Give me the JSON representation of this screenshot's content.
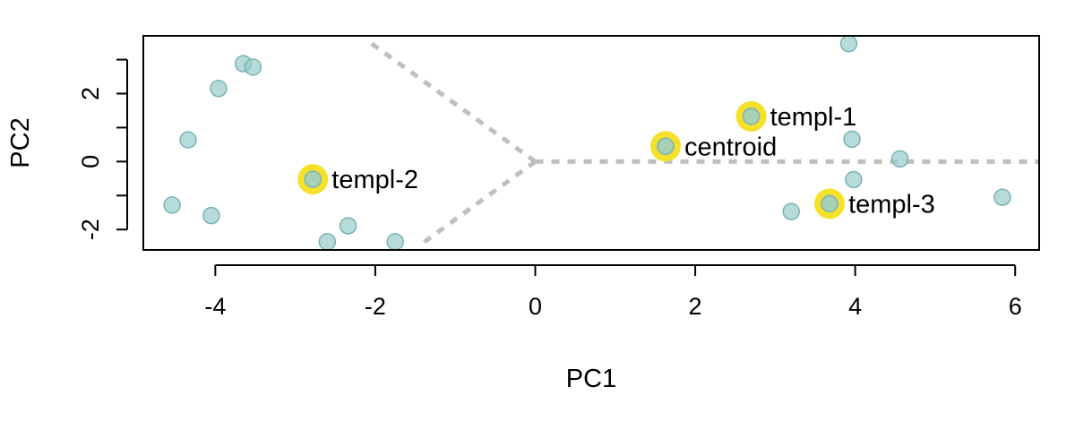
{
  "chart_data": {
    "type": "scatter",
    "xlabel": "PC1",
    "ylabel": "PC2",
    "xlim": [
      -4.9,
      6.3
    ],
    "ylim": [
      -2.6,
      3.7
    ],
    "x_ticks": [
      -4,
      -2,
      0,
      2,
      4,
      6
    ],
    "x_tick_labels": [
      "-4",
      "-2",
      "0",
      "2",
      "4",
      "6"
    ],
    "y_ticks": [
      -2,
      -1,
      0,
      1,
      2,
      3
    ],
    "y_tick_labels": [
      "-2",
      "",
      "0",
      "",
      "2",
      ""
    ],
    "grid": false,
    "colors": {
      "point_fill": "#99cccc",
      "point_stroke": "#7ab3b3",
      "highlight": "#f5e02a",
      "boundary": "#bfbfbf"
    },
    "points": [
      {
        "x": 3.92,
        "y": 3.47
      },
      {
        "x": -3.65,
        "y": 2.88
      },
      {
        "x": -3.53,
        "y": 2.78
      },
      {
        "x": -3.96,
        "y": 2.15
      },
      {
        "x": -4.34,
        "y": 0.64
      },
      {
        "x": 3.96,
        "y": 0.66
      },
      {
        "x": 4.56,
        "y": 0.08
      },
      {
        "x": 3.98,
        "y": -0.53
      },
      {
        "x": 5.84,
        "y": -1.05
      },
      {
        "x": 3.2,
        "y": -1.47
      },
      {
        "x": -4.54,
        "y": -1.28
      },
      {
        "x": -4.05,
        "y": -1.59
      },
      {
        "x": -2.34,
        "y": -1.89
      },
      {
        "x": -2.6,
        "y": -2.36
      },
      {
        "x": -1.75,
        "y": -2.36
      }
    ],
    "highlighted": [
      {
        "label": "templ-1",
        "x": 2.7,
        "y": 1.33
      },
      {
        "label": "centroid",
        "x": 1.63,
        "y": 0.45
      },
      {
        "label": "templ-2",
        "x": -2.78,
        "y": -0.52
      },
      {
        "label": "templ-3",
        "x": 3.68,
        "y": -1.24
      }
    ],
    "boundaries": [
      {
        "from": [
          0,
          0
        ],
        "to": [
          -2.11,
          3.58
        ]
      },
      {
        "from": [
          0,
          0
        ],
        "to": [
          -1.42,
          -2.42
        ]
      },
      {
        "from": [
          0,
          0
        ],
        "to": [
          6.3,
          0
        ]
      }
    ]
  }
}
